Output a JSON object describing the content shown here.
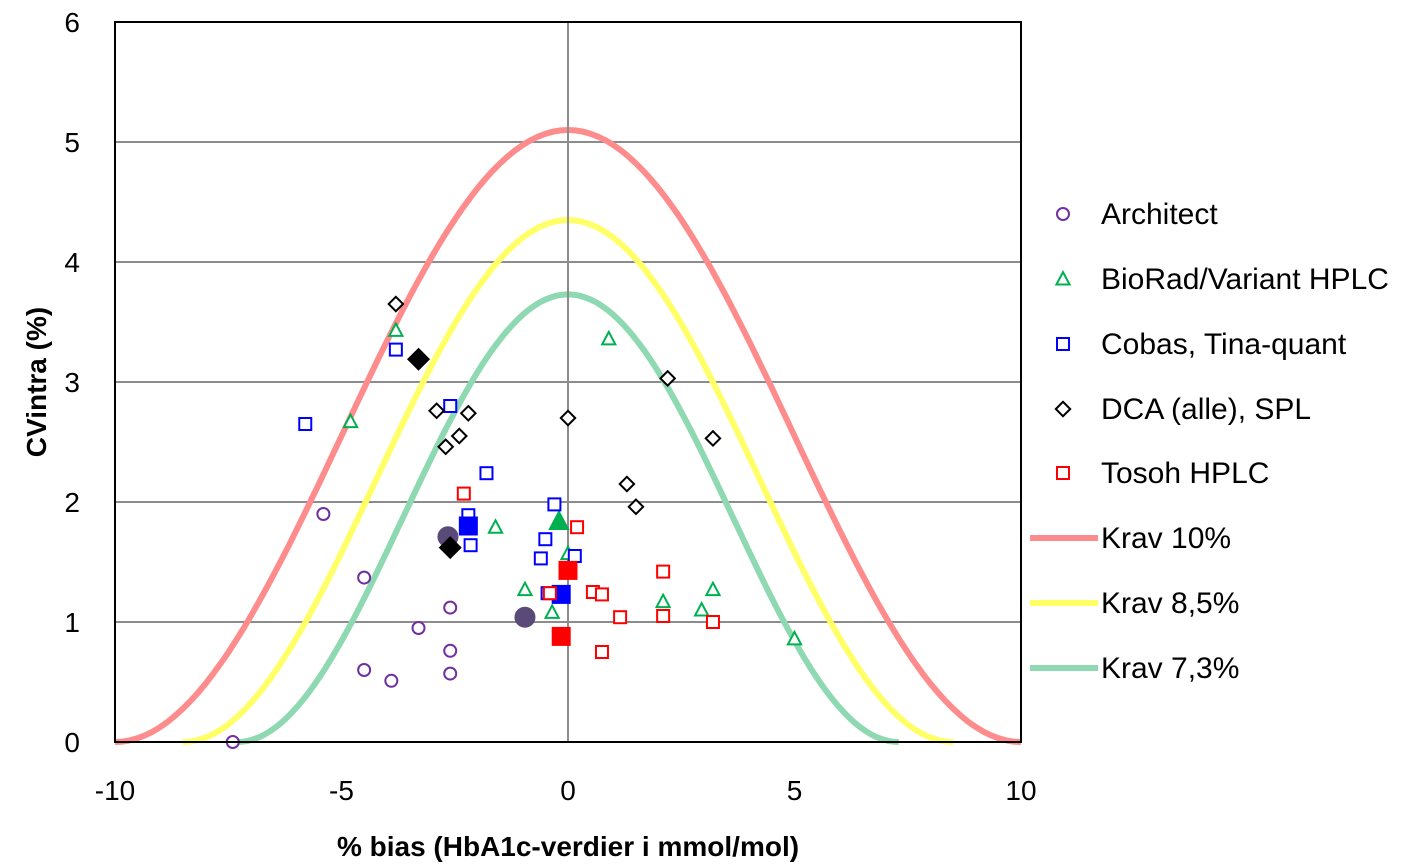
{
  "chart_data": {
    "type": "scatter",
    "title": "",
    "xlabel": "% bias (HbA1c-verdier i mmol/mol)",
    "ylabel": "CVintra (%)",
    "xlim": [
      -10,
      10
    ],
    "ylim": [
      0,
      6
    ],
    "xticks": [
      -10,
      -5,
      0,
      5,
      10
    ],
    "yticks": [
      0,
      1,
      2,
      3,
      4,
      5,
      6
    ],
    "xtick_labels": [
      "-10",
      "-5",
      "0",
      "5",
      "10"
    ],
    "ytick_labels": [
      "0",
      "1",
      "2",
      "3",
      "4",
      "5",
      "6"
    ],
    "grid": "horizontal major gridlines",
    "legend_position": "right",
    "series": [
      {
        "name": "Architect",
        "marker": "circle",
        "color": "#7030a0",
        "points": [
          [
            -5.4,
            1.9
          ],
          [
            -4.5,
            1.37
          ],
          [
            -2.6,
            1.12
          ],
          [
            -3.3,
            0.95
          ],
          [
            -2.6,
            0.76
          ],
          [
            -4.5,
            0.6
          ],
          [
            -3.9,
            0.51
          ],
          [
            -2.6,
            0.57
          ],
          [
            -7.4,
            0.0
          ]
        ],
        "mean": [
          [
            -2.65,
            1.71
          ],
          [
            -0.95,
            1.04
          ]
        ],
        "mean_color": "#5a4a78"
      },
      {
        "name": "BioRad/Variant HPLC",
        "marker": "triangle",
        "color": "#00b050",
        "points": [
          [
            -3.8,
            3.43
          ],
          [
            -4.8,
            2.67
          ],
          [
            0.9,
            3.36
          ],
          [
            -1.6,
            1.79
          ],
          [
            -0.95,
            1.27
          ],
          [
            -0.35,
            1.08
          ],
          [
            0.0,
            1.57
          ],
          [
            2.1,
            1.17
          ],
          [
            3.2,
            1.27
          ],
          [
            2.95,
            1.1
          ],
          [
            5.0,
            0.86
          ]
        ],
        "mean": [
          [
            -0.2,
            1.84
          ]
        ],
        "mean_color": "#00b050"
      },
      {
        "name": "Cobas, Tina-quant",
        "marker": "square",
        "color": "#0000ff",
        "points": [
          [
            -5.8,
            2.65
          ],
          [
            -3.8,
            3.27
          ],
          [
            -2.6,
            2.8
          ],
          [
            -1.8,
            2.24
          ],
          [
            -0.3,
            1.98
          ],
          [
            -2.2,
            1.89
          ],
          [
            -2.15,
            1.64
          ],
          [
            -0.5,
            1.69
          ],
          [
            -0.6,
            1.53
          ],
          [
            0.15,
            1.55
          ],
          [
            -0.45,
            1.24
          ]
        ],
        "mean": [
          [
            -2.2,
            1.8
          ],
          [
            -0.15,
            1.23
          ]
        ],
        "mean_color": "#0000ff"
      },
      {
        "name": "DCA (alle), SPL",
        "marker": "diamond",
        "color": "#000000",
        "points": [
          [
            -3.8,
            3.65
          ],
          [
            -2.9,
            2.76
          ],
          [
            -2.2,
            2.74
          ],
          [
            -2.4,
            2.55
          ],
          [
            -2.7,
            2.46
          ],
          [
            0.0,
            2.7
          ],
          [
            2.2,
            3.03
          ],
          [
            3.2,
            2.53
          ],
          [
            1.3,
            2.15
          ],
          [
            1.5,
            1.96
          ]
        ],
        "mean": [
          [
            -3.3,
            3.19
          ],
          [
            -2.6,
            1.62
          ]
        ],
        "mean_color": "#000000"
      },
      {
        "name": "Tosoh HPLC",
        "marker": "square",
        "color": "#ff0000",
        "points": [
          [
            -2.3,
            2.07
          ],
          [
            0.2,
            1.79
          ],
          [
            2.1,
            1.42
          ],
          [
            -0.4,
            1.24
          ],
          [
            0.55,
            1.25
          ],
          [
            0.75,
            1.23
          ],
          [
            1.15,
            1.04
          ],
          [
            2.1,
            1.05
          ],
          [
            3.2,
            1.0
          ],
          [
            0.75,
            0.75
          ]
        ],
        "mean": [
          [
            0.0,
            1.43
          ],
          [
            -0.15,
            0.88
          ]
        ],
        "mean_color": "#ff0000"
      }
    ],
    "curves": [
      {
        "name": "Krav 10%",
        "limit": 10,
        "peak": 5.1,
        "color": "#ff8c8c"
      },
      {
        "name": "Krav 8,5%",
        "limit": 8.5,
        "peak": 4.35,
        "color": "#ffff66"
      },
      {
        "name": "Krav 7,3%",
        "limit": 7.3,
        "peak": 3.73,
        "color": "#8ed9b1"
      }
    ]
  }
}
